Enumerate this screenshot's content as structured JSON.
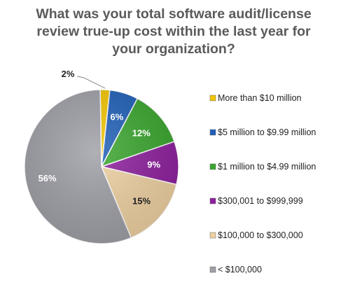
{
  "chart_data": {
    "type": "pie",
    "title_lines": [
      "What was your total software audit/license",
      "review true-up cost within the last year for",
      "your organization?"
    ],
    "categories": [
      "More than $10 million",
      "$5 million to $9.99 million",
      "$1 million to $4.99 million",
      "$300,001 to $999,999",
      "$100,000 to $300,000",
      "< $100,000"
    ],
    "values": [
      2,
      6,
      12,
      9,
      15,
      56
    ],
    "labels": [
      "2%",
      "6%",
      "12%",
      "9%",
      "15%",
      "56%"
    ],
    "colors": [
      "#f2c500",
      "#1f5fb8",
      "#3aa62e",
      "#8e1f9e",
      "#efd1a2",
      "#9e9ea6"
    ],
    "label_colors": [
      "#1f1f1f",
      "#ffffff",
      "#ffffff",
      "#ffffff",
      "#1f1f1f",
      "#ffffff"
    ],
    "legend_placement": "right"
  }
}
